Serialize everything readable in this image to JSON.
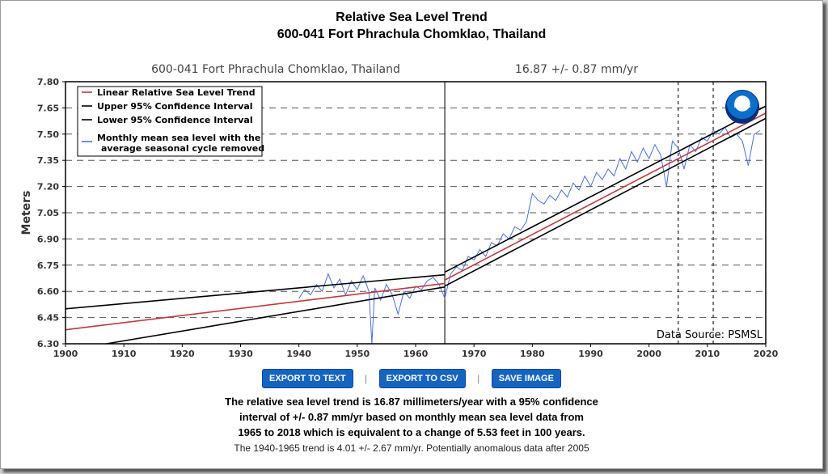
{
  "header": {
    "title_line1": "Relative Sea Level Trend",
    "title_line2": "600-041 Fort Phrachula Chomklao, Thailand"
  },
  "chart_data": {
    "type": "line",
    "station_label": "600-041 Fort Phrachula Chomklao, Thailand",
    "trend_label": "16.87 +/-  0.87 mm/yr",
    "ylabel": "Meters",
    "xlim": [
      1900,
      2020
    ],
    "ylim": [
      6.3,
      7.8
    ],
    "x_ticks": [
      "1900",
      "1910",
      "1920",
      "1930",
      "1940",
      "1950",
      "1960",
      "1970",
      "1980",
      "1990",
      "2000",
      "2010",
      "2020"
    ],
    "y_ticks": [
      "6.30",
      "6.45",
      "6.60",
      "6.75",
      "6.90",
      "7.05",
      "7.20",
      "7.35",
      "7.50",
      "7.65",
      "7.80"
    ],
    "grid": true,
    "legend_position": "top-left",
    "source_label": "Data Source: PSMSL",
    "noaa_logo_text": "NOAA",
    "vertical_markers": [
      {
        "x": 1965,
        "style": "solid"
      },
      {
        "x": 2005,
        "style": "dashed"
      },
      {
        "x": 2011,
        "style": "dashed"
      }
    ],
    "colors": {
      "trend": "#c0393b",
      "ci": "#000000",
      "monthly": "#4a6fe3"
    },
    "series": [
      {
        "name": "Linear Relative Sea Level Trend",
        "color": "#c0393b",
        "segments": [
          {
            "x": [
              1900,
              1965
            ],
            "y": [
              6.38,
              6.645
            ]
          },
          {
            "x": [
              1965,
              2020
            ],
            "y": [
              6.665,
              7.62
            ]
          }
        ]
      },
      {
        "name": "Upper 95% Confidence Interval",
        "color": "#000000",
        "segments": [
          {
            "x": [
              1900,
              1965
            ],
            "y": [
              6.5,
              6.695
            ]
          },
          {
            "x": [
              1965,
              2020
            ],
            "y": [
              6.71,
              7.66
            ]
          }
        ]
      },
      {
        "name": "Lower 95% Confidence Interval",
        "color": "#000000",
        "segments": [
          {
            "x": [
              1907,
              1965
            ],
            "y": [
              6.3,
              6.625
            ]
          },
          {
            "x": [
              1965,
              2020
            ],
            "y": [
              6.63,
              7.59
            ]
          }
        ]
      },
      {
        "name": "Monthly mean sea level with the average seasonal cycle removed",
        "color": "#4a6fe3",
        "x": [
          1940,
          1941,
          1942,
          1943,
          1944,
          1945,
          1946,
          1947,
          1948,
          1949,
          1950,
          1951,
          1952,
          1952.5,
          1953,
          1954,
          1955,
          1956,
          1957,
          1958,
          1959,
          1960,
          1961,
          1962,
          1963,
          1964,
          1965,
          1966,
          1967,
          1968,
          1969,
          1970,
          1971,
          1972,
          1973,
          1974,
          1975,
          1976,
          1977,
          1978,
          1979,
          1980,
          1981,
          1982,
          1983,
          1984,
          1985,
          1986,
          1987,
          1988,
          1989,
          1990,
          1991,
          1992,
          1993,
          1994,
          1995,
          1996,
          1997,
          1998,
          1999,
          2000,
          2001,
          2002,
          2003,
          2004,
          2005,
          2006,
          2007,
          2008,
          2009,
          2010,
          2011,
          2012,
          2013,
          2014,
          2015,
          2016,
          2017,
          2018,
          2019
        ],
        "y": [
          6.56,
          6.61,
          6.58,
          6.64,
          6.6,
          6.7,
          6.62,
          6.67,
          6.58,
          6.66,
          6.61,
          6.69,
          6.6,
          6.3,
          6.62,
          6.55,
          6.64,
          6.58,
          6.47,
          6.6,
          6.56,
          6.63,
          6.61,
          6.66,
          6.68,
          6.64,
          6.56,
          6.7,
          6.74,
          6.72,
          6.8,
          6.78,
          6.84,
          6.8,
          6.88,
          6.86,
          6.93,
          6.9,
          6.97,
          6.95,
          7.0,
          7.16,
          7.12,
          7.1,
          7.15,
          7.12,
          7.18,
          7.14,
          7.22,
          7.18,
          7.26,
          7.2,
          7.28,
          7.24,
          7.3,
          7.26,
          7.36,
          7.3,
          7.4,
          7.34,
          7.42,
          7.36,
          7.44,
          7.38,
          7.2,
          7.46,
          7.42,
          7.3,
          7.44,
          7.4,
          7.48,
          7.46,
          7.52,
          7.5,
          7.54,
          7.48,
          7.5,
          7.46,
          7.32,
          7.5,
          7.52
        ]
      }
    ]
  },
  "buttons": {
    "export_text": "EXPORT TO TEXT",
    "export_csv": "EXPORT TO CSV",
    "save_image": "SAVE IMAGE",
    "separator": "|"
  },
  "summary": {
    "line1": "The relative sea level trend is 16.87 millimeters/year with a 95% confidence",
    "line2": "interval of +/- 0.87 mm/yr based on monthly mean sea level data from",
    "line3": "1965 to 2018 which is equivalent to a change of 5.53 feet in 100 years.",
    "note": "The 1940-1965 trend is 4.01 +/- 2.67 mm/yr. Potentially anomalous data after 2005"
  }
}
